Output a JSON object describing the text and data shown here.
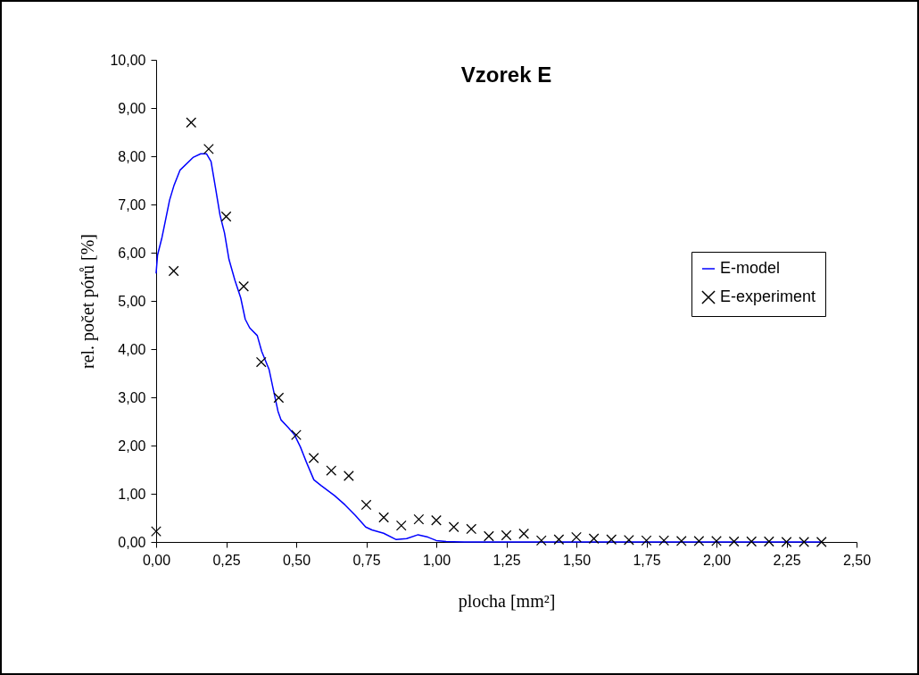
{
  "chart_data": {
    "type": "line",
    "title": "Vzorek E",
    "xlabel": "plocha [mm²]",
    "ylabel": "rel. počet pórů [%]",
    "xlim": [
      0,
      2.5
    ],
    "ylim": [
      0,
      10
    ],
    "xticks": [
      {
        "value": 0,
        "label": "0,00"
      },
      {
        "value": 0.25,
        "label": "0,25"
      },
      {
        "value": 0.5,
        "label": "0,50"
      },
      {
        "value": 0.75,
        "label": "0,75"
      },
      {
        "value": 1,
        "label": "1,00"
      },
      {
        "value": 1.25,
        "label": "1,25"
      },
      {
        "value": 1.5,
        "label": "1,50"
      },
      {
        "value": 1.75,
        "label": "1,75"
      },
      {
        "value": 2,
        "label": "2,00"
      },
      {
        "value": 2.25,
        "label": "2,25"
      },
      {
        "value": 2.5,
        "label": "2,50"
      }
    ],
    "yticks": [
      {
        "value": 0,
        "label": "0,00"
      },
      {
        "value": 1,
        "label": "1,00"
      },
      {
        "value": 2,
        "label": "2,00"
      },
      {
        "value": 3,
        "label": "3,00"
      },
      {
        "value": 4,
        "label": "4,00"
      },
      {
        "value": 5,
        "label": "5,00"
      },
      {
        "value": 6,
        "label": "6,00"
      },
      {
        "value": 7,
        "label": "7,00"
      },
      {
        "value": 8,
        "label": "8,00"
      },
      {
        "value": 9,
        "label": "9,00"
      },
      {
        "value": 10,
        "label": "10,00"
      }
    ],
    "grid": false,
    "legend": "right",
    "series": [
      {
        "name": "E-model",
        "color": "#0000ff",
        "line_style": "solid",
        "x": [
          0,
          0.005,
          0.021,
          0.048,
          0.064,
          0.085,
          0.133,
          0.159,
          0.18,
          0.196,
          0.212,
          0.228,
          0.244,
          0.26,
          0.281,
          0.302,
          0.318,
          0.334,
          0.361,
          0.377,
          0.403,
          0.419,
          0.435,
          0.446,
          0.472,
          0.494,
          0.515,
          0.536,
          0.563,
          0.589,
          0.637,
          0.674,
          0.711,
          0.748,
          0.77,
          0.812,
          0.857,
          0.894,
          0.935,
          0.97,
          1.0,
          1.035,
          1.1,
          2.375
        ],
        "values": [
          5.58,
          5.95,
          6.32,
          7.09,
          7.4,
          7.71,
          7.98,
          8.05,
          8.05,
          7.89,
          7.34,
          6.78,
          6.41,
          5.86,
          5.43,
          5.06,
          4.62,
          4.44,
          4.28,
          3.95,
          3.58,
          3.14,
          2.71,
          2.53,
          2.37,
          2.22,
          1.97,
          1.66,
          1.29,
          1.17,
          0.96,
          0.77,
          0.55,
          0.31,
          0.25,
          0.18,
          0.05,
          0.07,
          0.15,
          0.1,
          0.03,
          0.01,
          0,
          0
        ]
      },
      {
        "name": "E-experiment",
        "type": "scatter",
        "color": "#000000",
        "marker": "cross",
        "x": [
          0,
          0.0625,
          0.125,
          0.1875,
          0.25,
          0.3125,
          0.375,
          0.4375,
          0.5,
          0.5625,
          0.625,
          0.6875,
          0.75,
          0.8125,
          0.875,
          0.9375,
          1.0,
          1.0625,
          1.125,
          1.1875,
          1.25,
          1.3125,
          1.375,
          1.4375,
          1.5,
          1.5625,
          1.625,
          1.6875,
          1.75,
          1.8125,
          1.875,
          1.9375,
          2.0,
          2.0625,
          2.125,
          2.1875,
          2.25,
          2.3125,
          2.375
        ],
        "values": [
          0.22,
          5.62,
          8.7,
          8.15,
          6.75,
          5.3,
          3.73,
          2.99,
          2.22,
          1.74,
          1.48,
          1.37,
          0.77,
          0.51,
          0.34,
          0.47,
          0.45,
          0.31,
          0.27,
          0.12,
          0.14,
          0.17,
          0.03,
          0.05,
          0.1,
          0.07,
          0.05,
          0.04,
          0.03,
          0.03,
          0.02,
          0.02,
          0.02,
          0.01,
          0.01,
          0.01,
          0,
          0,
          0
        ]
      }
    ]
  }
}
